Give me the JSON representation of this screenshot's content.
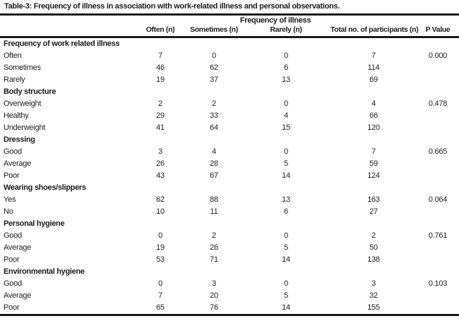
{
  "title": "Table-3: Frequency of illness in association with work-related illness and personal observations.",
  "table": {
    "span_header": "Frequency of illness",
    "columns": [
      "",
      "Often (n)",
      "Sometimes (n)",
      "Rarely (n)",
      "Total no. of participants (n)",
      "P Value"
    ],
    "sections": [
      {
        "header": "Frequency of work related illness",
        "rows": [
          {
            "label": "Often",
            "often": "7",
            "sometimes": "0",
            "rarely": "0",
            "total": "7",
            "p": "0.000"
          },
          {
            "label": "Sometimes",
            "often": "46",
            "sometimes": "62",
            "rarely": "6",
            "total": "114",
            "p": ""
          },
          {
            "label": "Rarely",
            "often": "19",
            "sometimes": "37",
            "rarely": "13",
            "total": "69",
            "p": ""
          }
        ]
      },
      {
        "header": "Body structure",
        "rows": [
          {
            "label": "Overweight",
            "often": "2",
            "sometimes": "2",
            "rarely": "0",
            "total": "4",
            "p": "0.478"
          },
          {
            "label": "Healthy",
            "often": "29",
            "sometimes": "33",
            "rarely": "4",
            "total": "66",
            "p": ""
          },
          {
            "label": "Underweight",
            "often": "41",
            "sometimes": "64",
            "rarely": "15",
            "total": "120",
            "p": ""
          }
        ]
      },
      {
        "header": "Dressing",
        "rows": [
          {
            "label": "Good",
            "often": "3",
            "sometimes": "4",
            "rarely": "0",
            "total": "7",
            "p": "0.665"
          },
          {
            "label": "Average",
            "often": "26",
            "sometimes": "28",
            "rarely": "5",
            "total": "59",
            "p": ""
          },
          {
            "label": "Poor",
            "often": "43",
            "sometimes": "67",
            "rarely": "14",
            "total": "124",
            "p": ""
          }
        ]
      },
      {
        "header": "Wearing shoes/slippers",
        "rows": [
          {
            "label": "Yes",
            "often": "62",
            "sometimes": "88",
            "rarely": "13",
            "total": "163",
            "p": "0.064"
          },
          {
            "label": "No",
            "often": "10",
            "sometimes": "11",
            "rarely": "6",
            "total": "27",
            "p": ""
          }
        ]
      },
      {
        "header": "Personal hygiene",
        "rows": [
          {
            "label": "Good",
            "often": "0",
            "sometimes": "2",
            "rarely": "0",
            "total": "2",
            "p": "0.761"
          },
          {
            "label": "Average",
            "often": "19",
            "sometimes": "26",
            "rarely": "5",
            "total": "50",
            "p": ""
          },
          {
            "label": "Poor",
            "often": "53",
            "sometimes": "71",
            "rarely": "14",
            "total": "138",
            "p": ""
          }
        ]
      },
      {
        "header": "Environmental hygiene",
        "rows": [
          {
            "label": "Good",
            "often": "0",
            "sometimes": "3",
            "rarely": "0",
            "total": "3",
            "p": "0.103"
          },
          {
            "label": "Average",
            "often": "7",
            "sometimes": "20",
            "rarely": "5",
            "total": "32",
            "p": ""
          },
          {
            "label": "Poor",
            "often": "65",
            "sometimes": "76",
            "rarely": "14",
            "total": "155",
            "p": ""
          }
        ]
      }
    ]
  }
}
